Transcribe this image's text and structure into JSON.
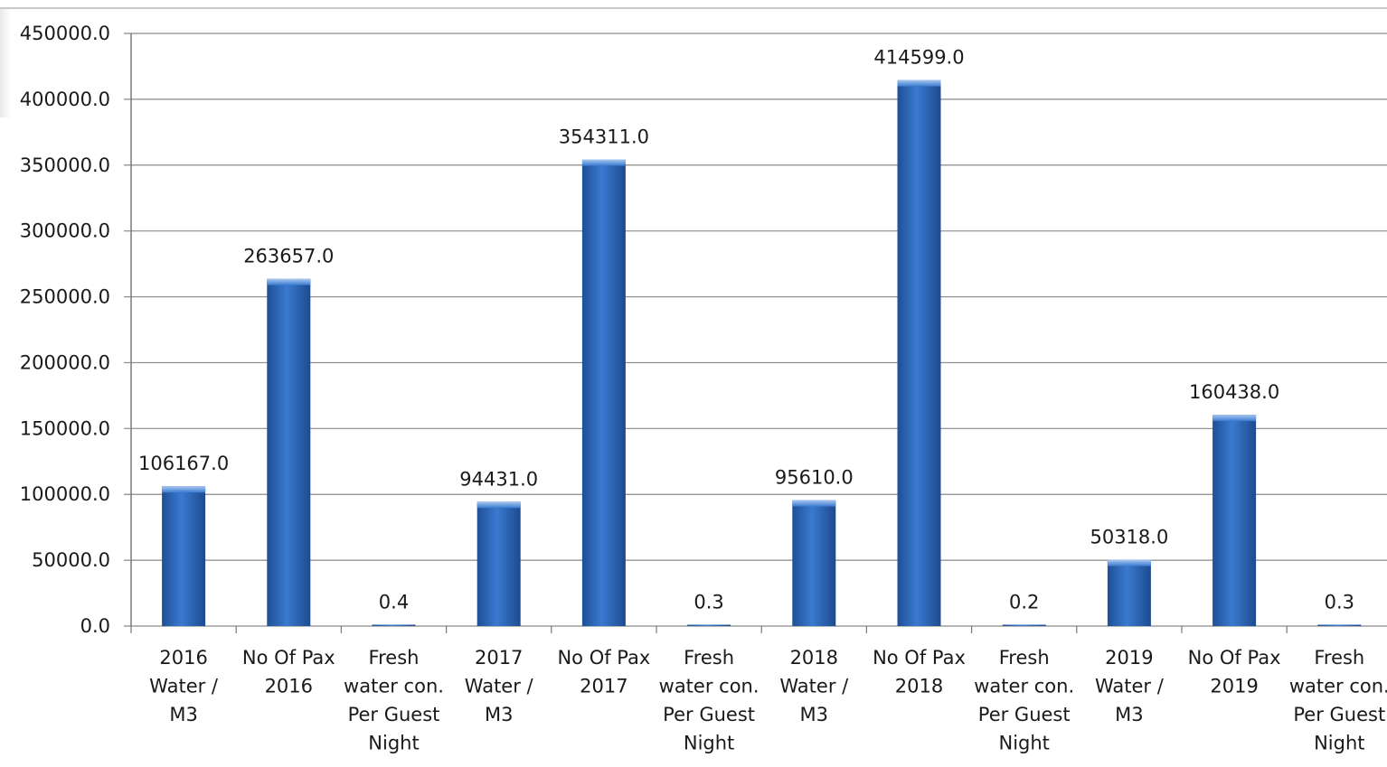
{
  "chart_data": {
    "type": "bar",
    "title": "",
    "xlabel": "",
    "ylabel": "",
    "ylim": [
      0,
      450000
    ],
    "y_ticks": [
      "450000.0",
      "400000.0",
      "350000.0",
      "300000.0",
      "250000.0",
      "200000.0",
      "150000.0",
      "100000.0",
      "50000.0",
      "0.0"
    ],
    "y_tick_values": [
      450000,
      400000,
      350000,
      300000,
      250000,
      200000,
      150000,
      100000,
      50000,
      0
    ],
    "grid": true,
    "legend": "none",
    "bar_color": "#2f6bbf",
    "categories": [
      [
        "2016",
        "Water /",
        "M3"
      ],
      [
        "No Of Pax",
        "2016"
      ],
      [
        "Fresh",
        "water con.",
        "Per Guest",
        "Night"
      ],
      [
        "2017",
        "Water /",
        "M3"
      ],
      [
        "No Of Pax",
        "2017"
      ],
      [
        "Fresh",
        "water con.",
        "Per Guest",
        "Night"
      ],
      [
        "2018",
        "Water /",
        "M3"
      ],
      [
        "No Of Pax",
        "2018"
      ],
      [
        "Fresh",
        "water con.",
        "Per Guest",
        "Night"
      ],
      [
        "2019",
        "Water /",
        "M3"
      ],
      [
        "No Of Pax",
        "2019"
      ],
      [
        "Fresh",
        "water con.",
        "Per Guest",
        "Night"
      ]
    ],
    "values": [
      106167.0,
      263657.0,
      0.4,
      94431.0,
      354311.0,
      0.3,
      95610.0,
      414599.0,
      0.2,
      50318.0,
      160438.0,
      0.3
    ],
    "data_labels": [
      "106167.0",
      "263657.0",
      "0.4",
      "94431.0",
      "354311.0",
      "0.3",
      "95610.0",
      "414599.0",
      "0.2",
      "50318.0",
      "160438.0",
      "0.3"
    ]
  }
}
